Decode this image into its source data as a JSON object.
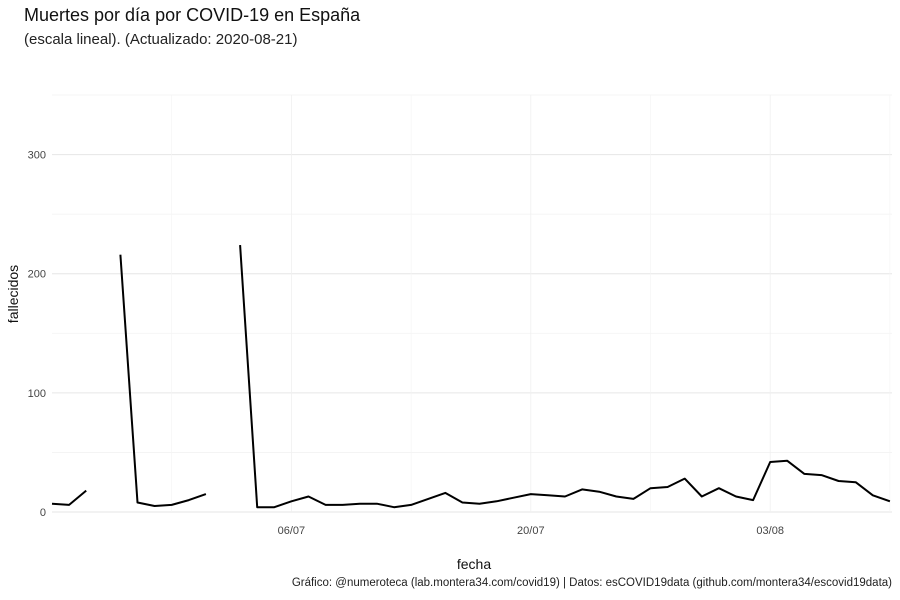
{
  "chart_data": {
    "type": "line",
    "title": "Muertes por día por COVID-19 en España",
    "subtitle": "(escala lineal). (Actualizado: 2020-08-21)",
    "xlabel": "fecha",
    "ylabel": "fallecidos",
    "caption": "Gráfico: @numeroteca (lab.montera34.com/covid19) | Datos: esCOVID19data (github.com/montera34/escovid19data)",
    "xlim": [
      "2020-06-22",
      "2020-08-21"
    ],
    "ylim": [
      0,
      350
    ],
    "y_ticks": [
      0,
      100,
      200,
      300
    ],
    "x_ticks": [
      {
        "date": "2020-07-06",
        "label": "06/07"
      },
      {
        "date": "2020-07-20",
        "label": "20/07"
      },
      {
        "date": "2020-08-03",
        "label": "03/08"
      }
    ],
    "grid": true,
    "legend": "none",
    "line_color": "#000000",
    "series": [
      {
        "values": [
          {
            "x": "2020-06-22",
            "y": 7
          },
          {
            "x": "2020-06-23",
            "y": 6
          },
          {
            "x": "2020-06-24",
            "y": 18
          },
          {
            "x": "2020-06-25",
            "y": null
          },
          {
            "x": "2020-06-26",
            "y": null
          },
          {
            "x": "2020-06-26",
            "y": 216
          },
          {
            "x": "2020-06-27",
            "y": 8
          },
          {
            "x": "2020-06-28",
            "y": 5
          },
          {
            "x": "2020-06-29",
            "y": 6
          },
          {
            "x": "2020-06-30",
            "y": 10
          },
          {
            "x": "2020-07-01",
            "y": 15
          },
          {
            "x": "2020-07-02",
            "y": null
          },
          {
            "x": "2020-07-03",
            "y": 224
          },
          {
            "x": "2020-07-04",
            "y": 4
          },
          {
            "x": "2020-07-05",
            "y": 4
          },
          {
            "x": "2020-07-06",
            "y": 9
          },
          {
            "x": "2020-07-07",
            "y": 13
          },
          {
            "x": "2020-07-08",
            "y": 6
          },
          {
            "x": "2020-07-09",
            "y": 6
          },
          {
            "x": "2020-07-10",
            "y": 7
          },
          {
            "x": "2020-07-11",
            "y": 7
          },
          {
            "x": "2020-07-12",
            "y": 4
          },
          {
            "x": "2020-07-13",
            "y": 6
          },
          {
            "x": "2020-07-14",
            "y": 11
          },
          {
            "x": "2020-07-15",
            "y": 16
          },
          {
            "x": "2020-07-16",
            "y": 8
          },
          {
            "x": "2020-07-17",
            "y": 7
          },
          {
            "x": "2020-07-18",
            "y": 9
          },
          {
            "x": "2020-07-19",
            "y": 12
          },
          {
            "x": "2020-07-20",
            "y": 15
          },
          {
            "x": "2020-07-21",
            "y": 14
          },
          {
            "x": "2020-07-22",
            "y": 13
          },
          {
            "x": "2020-07-23",
            "y": 19
          },
          {
            "x": "2020-07-24",
            "y": 17
          },
          {
            "x": "2020-07-25",
            "y": 13
          },
          {
            "x": "2020-07-26",
            "y": 11
          },
          {
            "x": "2020-07-27",
            "y": 20
          },
          {
            "x": "2020-07-28",
            "y": 21
          },
          {
            "x": "2020-07-29",
            "y": 28
          },
          {
            "x": "2020-07-30",
            "y": 13
          },
          {
            "x": "2020-07-31",
            "y": 20
          },
          {
            "x": "2020-08-01",
            "y": 13
          },
          {
            "x": "2020-08-02",
            "y": 10
          },
          {
            "x": "2020-08-03",
            "y": 42
          },
          {
            "x": "2020-08-04",
            "y": 43
          },
          {
            "x": "2020-08-05",
            "y": 32
          },
          {
            "x": "2020-08-06",
            "y": 31
          },
          {
            "x": "2020-08-07",
            "y": 26
          },
          {
            "x": "2020-08-08",
            "y": 25
          },
          {
            "x": "2020-08-09",
            "y": 14
          },
          {
            "x": "2020-08-10",
            "y": 9
          }
        ]
      }
    ]
  }
}
